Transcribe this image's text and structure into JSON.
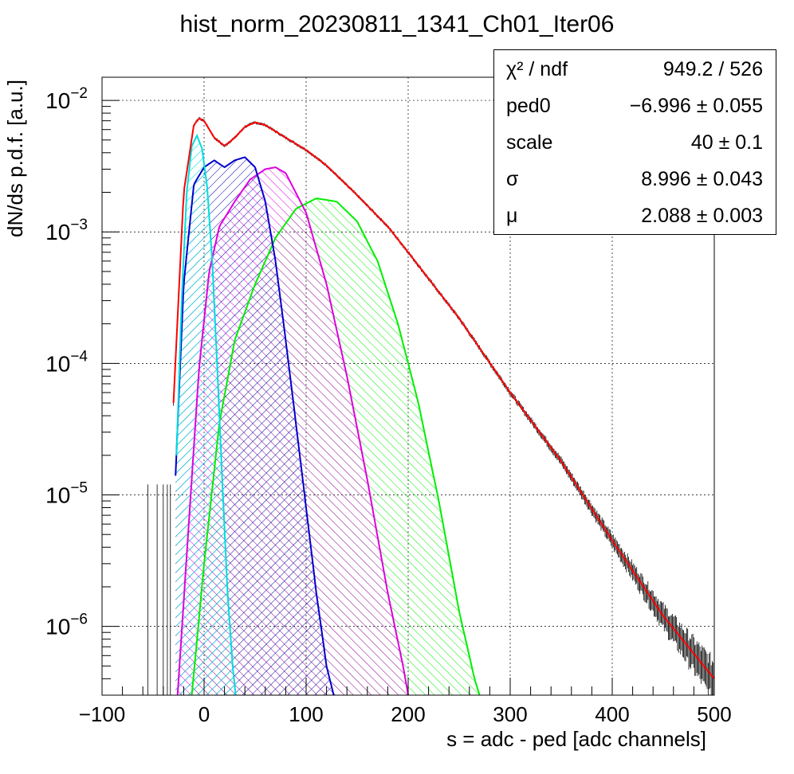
{
  "chart_data": {
    "type": "line",
    "title": "hist_norm_20230811_1341_Ch01_Iter06",
    "xlabel": "s = adc - ped [adc channels]",
    "ylabel": "dN/ds p.d.f. [a.u.]",
    "xlim": [
      -100,
      500
    ],
    "ylim": [
      3e-07,
      0.015
    ],
    "yscale": "log",
    "grid": true,
    "x_ticks": [
      "−100",
      "0",
      "100",
      "200",
      "300",
      "400",
      "500"
    ],
    "y_ticks": [
      {
        "base": "10",
        "exp": "−2"
      },
      {
        "base": "10",
        "exp": "−3"
      },
      {
        "base": "10",
        "exp": "−4"
      },
      {
        "base": "10",
        "exp": "−5"
      },
      {
        "base": "10",
        "exp": "−6"
      }
    ],
    "series": [
      {
        "color": "#000000",
        "kind": "histogram",
        "x": [
          -30,
          -20,
          -10,
          -5,
          0,
          10,
          20,
          30,
          40,
          50,
          60,
          80,
          100,
          120,
          150,
          180,
          200,
          250,
          300,
          350,
          400,
          450,
          500
        ],
        "y": [
          5e-05,
          0.002,
          0.0065,
          0.0073,
          0.007,
          0.0052,
          0.0045,
          0.0052,
          0.0063,
          0.0068,
          0.0065,
          0.0052,
          0.0042,
          0.0032,
          0.0019,
          0.0011,
          0.0007,
          0.00022,
          6e-05,
          1.8e-05,
          4.5e-06,
          1.2e-06,
          4e-07
        ]
      },
      {
        "color": "#ff0000",
        "kind": "fit",
        "x": [
          -30,
          -20,
          -10,
          -5,
          0,
          10,
          20,
          30,
          40,
          50,
          60,
          80,
          100,
          120,
          150,
          180,
          200,
          250,
          300,
          350,
          400,
          450,
          500
        ],
        "y": [
          5e-05,
          0.002,
          0.0065,
          0.0073,
          0.007,
          0.0052,
          0.0045,
          0.0052,
          0.0063,
          0.0068,
          0.0065,
          0.0052,
          0.0042,
          0.0032,
          0.0019,
          0.0011,
          0.0007,
          0.00022,
          6e-05,
          1.8e-05,
          4.5e-06,
          1.2e-06,
          4e-07
        ]
      },
      {
        "color": "#00dddd",
        "kind": "component",
        "x": [
          -27,
          -22,
          -17,
          -12,
          -7,
          -2,
          3,
          8,
          13,
          18,
          23,
          28,
          31
        ],
        "y": [
          2e-05,
          0.0003,
          0.002,
          0.0045,
          0.0054,
          0.0043,
          0.0022,
          0.0006,
          9e-05,
          1.2e-05,
          1.8e-06,
          5e-07,
          3e-07
        ]
      },
      {
        "color": "#0000cc",
        "kind": "component",
        "x": [
          -28,
          -20,
          -10,
          0,
          10,
          20,
          30,
          40,
          50,
          60,
          70,
          80,
          90,
          100,
          110,
          120,
          127
        ],
        "y": [
          1.4e-05,
          0.0004,
          0.0023,
          0.0031,
          0.0035,
          0.0031,
          0.0035,
          0.0037,
          0.0031,
          0.0017,
          0.0006,
          0.00015,
          3.5e-05,
          8e-06,
          1.8e-06,
          5e-07,
          3e-07
        ]
      },
      {
        "color": "#dd00dd",
        "kind": "component",
        "x": [
          -26,
          -15,
          -5,
          5,
          15,
          30,
          45,
          60,
          70,
          80,
          100,
          120,
          140,
          160,
          180,
          195,
          200
        ],
        "y": [
          3e-07,
          6e-06,
          9e-05,
          0.0005,
          0.0011,
          0.0017,
          0.0025,
          0.003,
          0.0031,
          0.0028,
          0.0014,
          0.0004,
          8e-05,
          1.3e-05,
          1.8e-06,
          5e-07,
          3e-07
        ]
      },
      {
        "color": "#00ee00",
        "kind": "component",
        "x": [
          -12,
          0,
          15,
          30,
          50,
          70,
          90,
          110,
          130,
          150,
          170,
          190,
          210,
          230,
          250,
          265,
          270
        ],
        "y": [
          3e-07,
          3e-06,
          3.5e-05,
          0.00015,
          0.0004,
          0.0009,
          0.0015,
          0.0018,
          0.0017,
          0.0012,
          0.0006,
          0.0002,
          5e-05,
          9e-06,
          1.3e-06,
          4e-07,
          3e-07
        ]
      }
    ],
    "stats_box": [
      {
        "name": "χ² / ndf",
        "value": "949.2 / 526"
      },
      {
        "name": "ped0",
        "value": "−6.996 ± 0.055"
      },
      {
        "name": "scale",
        "value": "40 ± 0.1"
      },
      {
        "name": "σ",
        "value": "8.996 ± 0.043"
      },
      {
        "name": "μ",
        "value": "2.088 ± 0.003"
      }
    ]
  }
}
